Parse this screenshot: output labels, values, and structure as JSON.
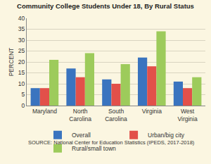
{
  "chart_data": {
    "type": "bar",
    "title": "Community College Students Under 18, By Rural Status",
    "y_label": "PERCENT",
    "source": "SOURCE: National Center for Education Statistics (IPEDS, 2017-2018)",
    "categories": [
      "Maryland",
      "North Carolina",
      "South Carolina",
      "Virginia",
      "West Virginia"
    ],
    "series": [
      {
        "name": "Overall",
        "color": "#3a74bf",
        "values": [
          8,
          17,
          12,
          22,
          11
        ]
      },
      {
        "name": "Urban/big city",
        "color": "#e2504a",
        "values": [
          8,
          13,
          10,
          18,
          8
        ]
      },
      {
        "name": "Rural/small town",
        "color": "#9dcb5b",
        "values": [
          21,
          24,
          19,
          34,
          13
        ]
      }
    ],
    "ylim": [
      0,
      40
    ],
    "yticks": [
      0,
      5,
      10,
      15,
      20,
      25,
      30,
      35,
      40
    ],
    "grid": true,
    "legend": "bottom"
  }
}
